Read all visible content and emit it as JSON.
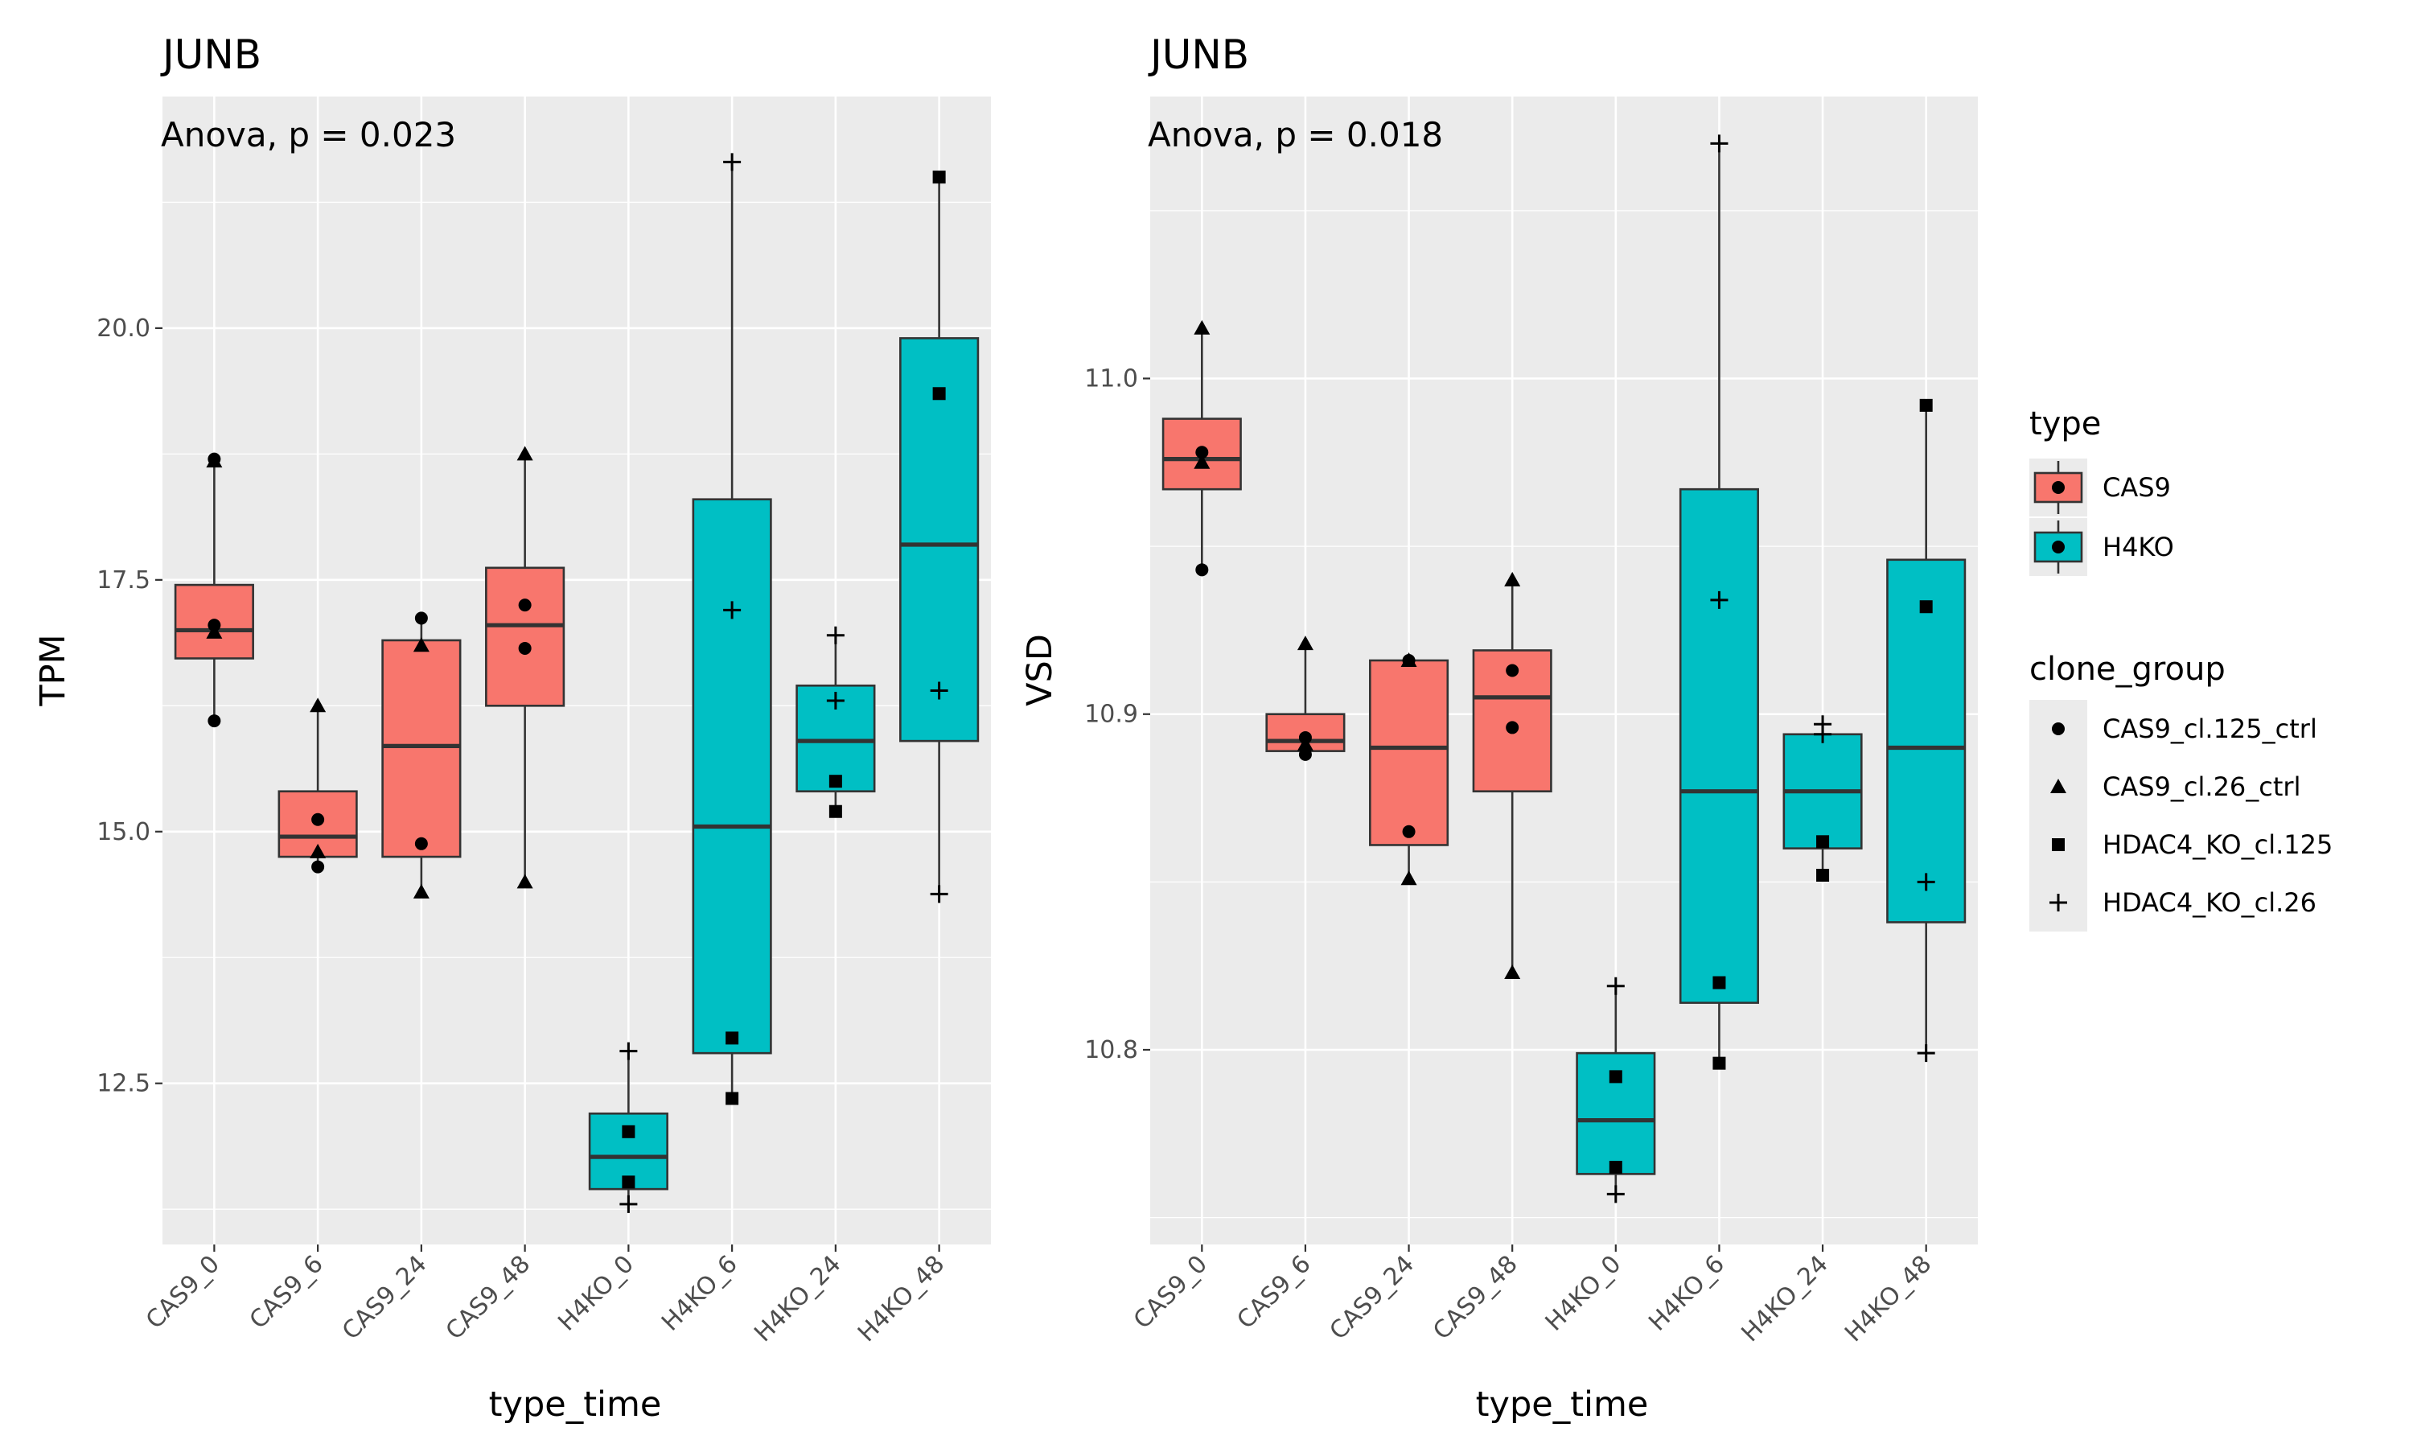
{
  "chart_data": [
    {
      "type": "box",
      "title": "JUNB",
      "annotation": "Anova, p = 0.023",
      "xlabel": "type_time",
      "ylabel": "TPM",
      "ylim": [
        10.9,
        22.3
      ],
      "yticks": [
        12.5,
        15.0,
        17.5,
        20.0
      ],
      "ytick_labels": [
        "12.5",
        "15.0",
        "17.5",
        "20.0"
      ],
      "categories": [
        "CAS9_0",
        "CAS9_6",
        "CAS9_24",
        "CAS9_48",
        "H4KO_0",
        "H4KO_6",
        "H4KO_24",
        "H4KO_48"
      ],
      "box_type": [
        "CAS9",
        "CAS9",
        "CAS9",
        "CAS9",
        "H4KO",
        "H4KO",
        "H4KO",
        "H4KO"
      ],
      "boxes": [
        {
          "min": 16.1,
          "q1": 16.72,
          "median": 17.0,
          "q3": 17.45,
          "max": 18.7
        },
        {
          "min": 14.65,
          "q1": 14.75,
          "median": 14.95,
          "q3": 15.4,
          "max": 16.25
        },
        {
          "min": 14.4,
          "q1": 14.75,
          "median": 15.85,
          "q3": 16.9,
          "max": 17.15
        },
        {
          "min": 14.5,
          "q1": 16.25,
          "median": 17.05,
          "q3": 17.62,
          "max": 18.75
        },
        {
          "min": 11.3,
          "q1": 11.45,
          "median": 11.77,
          "q3": 12.2,
          "max": 12.82
        },
        {
          "min": 12.35,
          "q1": 12.8,
          "median": 15.05,
          "q3": 18.3,
          "max": 21.65
        },
        {
          "min": 15.2,
          "q1": 15.4,
          "median": 15.9,
          "q3": 16.45,
          "max": 16.95
        },
        {
          "min": 14.38,
          "q1": 15.9,
          "median": 17.85,
          "q3": 19.9,
          "max": 21.5
        }
      ],
      "points": [
        {
          "x": "CAS9_0",
          "y": 18.7,
          "group": "CAS9_cl.125_ctrl"
        },
        {
          "x": "CAS9_0",
          "y": 16.1,
          "group": "CAS9_cl.125_ctrl"
        },
        {
          "x": "CAS9_0",
          "y": 17.05,
          "group": "CAS9_cl.125_ctrl"
        },
        {
          "x": "CAS9_0",
          "y": 16.98,
          "group": "CAS9_cl.26_ctrl"
        },
        {
          "x": "CAS9_0",
          "y": 18.68,
          "group": "CAS9_cl.26_ctrl"
        },
        {
          "x": "CAS9_6",
          "y": 15.12,
          "group": "CAS9_cl.125_ctrl"
        },
        {
          "x": "CAS9_6",
          "y": 14.65,
          "group": "CAS9_cl.125_ctrl"
        },
        {
          "x": "CAS9_6",
          "y": 16.25,
          "group": "CAS9_cl.26_ctrl"
        },
        {
          "x": "CAS9_6",
          "y": 14.8,
          "group": "CAS9_cl.26_ctrl"
        },
        {
          "x": "CAS9_24",
          "y": 17.12,
          "group": "CAS9_cl.125_ctrl"
        },
        {
          "x": "CAS9_24",
          "y": 14.88,
          "group": "CAS9_cl.125_ctrl"
        },
        {
          "x": "CAS9_24",
          "y": 16.85,
          "group": "CAS9_cl.26_ctrl"
        },
        {
          "x": "CAS9_24",
          "y": 14.4,
          "group": "CAS9_cl.26_ctrl"
        },
        {
          "x": "CAS9_48",
          "y": 17.25,
          "group": "CAS9_cl.125_ctrl"
        },
        {
          "x": "CAS9_48",
          "y": 16.82,
          "group": "CAS9_cl.125_ctrl"
        },
        {
          "x": "CAS9_48",
          "y": 18.75,
          "group": "CAS9_cl.26_ctrl"
        },
        {
          "x": "CAS9_48",
          "y": 14.5,
          "group": "CAS9_cl.26_ctrl"
        },
        {
          "x": "H4KO_0",
          "y": 12.02,
          "group": "HDAC4_KO_cl.125"
        },
        {
          "x": "H4KO_0",
          "y": 11.52,
          "group": "HDAC4_KO_cl.125"
        },
        {
          "x": "H4KO_0",
          "y": 12.82,
          "group": "HDAC4_KO_cl.26"
        },
        {
          "x": "H4KO_0",
          "y": 11.3,
          "group": "HDAC4_KO_cl.26"
        },
        {
          "x": "H4KO_6",
          "y": 12.95,
          "group": "HDAC4_KO_cl.125"
        },
        {
          "x": "H4KO_6",
          "y": 12.35,
          "group": "HDAC4_KO_cl.125"
        },
        {
          "x": "H4KO_6",
          "y": 21.65,
          "group": "HDAC4_KO_cl.26"
        },
        {
          "x": "H4KO_6",
          "y": 17.2,
          "group": "HDAC4_KO_cl.26"
        },
        {
          "x": "H4KO_24",
          "y": 15.5,
          "group": "HDAC4_KO_cl.125"
        },
        {
          "x": "H4KO_24",
          "y": 15.2,
          "group": "HDAC4_KO_cl.125"
        },
        {
          "x": "H4KO_24",
          "y": 16.95,
          "group": "HDAC4_KO_cl.26"
        },
        {
          "x": "H4KO_24",
          "y": 16.3,
          "group": "HDAC4_KO_cl.26"
        },
        {
          "x": "H4KO_48",
          "y": 21.5,
          "group": "HDAC4_KO_cl.125"
        },
        {
          "x": "H4KO_48",
          "y": 19.35,
          "group": "HDAC4_KO_cl.125"
        },
        {
          "x": "H4KO_48",
          "y": 16.4,
          "group": "HDAC4_KO_cl.26"
        },
        {
          "x": "H4KO_48",
          "y": 14.38,
          "group": "HDAC4_KO_cl.26"
        }
      ]
    },
    {
      "type": "box",
      "title": "JUNB",
      "annotation": "Anova, p = 0.018",
      "xlabel": "type_time",
      "ylabel": "VSD",
      "ylim": [
        10.742,
        11.084
      ],
      "yticks": [
        10.8,
        10.9,
        11.0
      ],
      "ytick_labels": [
        "10.8",
        "10.9",
        "11.0"
      ],
      "categories": [
        "CAS9_0",
        "CAS9_6",
        "CAS9_24",
        "CAS9_48",
        "H4KO_0",
        "H4KO_6",
        "H4KO_24",
        "H4KO_48"
      ],
      "box_type": [
        "CAS9",
        "CAS9",
        "CAS9",
        "CAS9",
        "H4KO",
        "H4KO",
        "H4KO",
        "H4KO"
      ],
      "boxes": [
        {
          "min": 10.943,
          "q1": 10.967,
          "median": 10.976,
          "q3": 10.988,
          "max": 11.015
        },
        {
          "min": 10.888,
          "q1": 10.889,
          "median": 10.892,
          "q3": 10.9,
          "max": 10.921
        },
        {
          "min": 10.851,
          "q1": 10.861,
          "median": 10.89,
          "q3": 10.916,
          "max": 10.916
        },
        {
          "min": 10.823,
          "q1": 10.877,
          "median": 10.905,
          "q3": 10.919,
          "max": 10.94
        },
        {
          "min": 10.757,
          "q1": 10.763,
          "median": 10.779,
          "q3": 10.799,
          "max": 10.819
        },
        {
          "min": 10.796,
          "q1": 10.814,
          "median": 10.877,
          "q3": 10.967,
          "max": 11.07
        },
        {
          "min": 10.852,
          "q1": 10.86,
          "median": 10.877,
          "q3": 10.894,
          "max": 10.897
        },
        {
          "min": 10.799,
          "q1": 10.838,
          "median": 10.89,
          "q3": 10.946,
          "max": 10.992
        }
      ],
      "points": [
        {
          "x": "CAS9_0",
          "y": 10.978,
          "group": "CAS9_cl.125_ctrl"
        },
        {
          "x": "CAS9_0",
          "y": 10.943,
          "group": "CAS9_cl.125_ctrl"
        },
        {
          "x": "CAS9_0",
          "y": 11.015,
          "group": "CAS9_cl.26_ctrl"
        },
        {
          "x": "CAS9_0",
          "y": 10.975,
          "group": "CAS9_cl.26_ctrl"
        },
        {
          "x": "CAS9_6",
          "y": 10.893,
          "group": "CAS9_cl.125_ctrl"
        },
        {
          "x": "CAS9_6",
          "y": 10.888,
          "group": "CAS9_cl.125_ctrl"
        },
        {
          "x": "CAS9_6",
          "y": 10.921,
          "group": "CAS9_cl.26_ctrl"
        },
        {
          "x": "CAS9_6",
          "y": 10.891,
          "group": "CAS9_cl.26_ctrl"
        },
        {
          "x": "CAS9_24",
          "y": 10.865,
          "group": "CAS9_cl.125_ctrl"
        },
        {
          "x": "CAS9_24",
          "y": 10.916,
          "group": "CAS9_cl.125_ctrl"
        },
        {
          "x": "CAS9_24",
          "y": 10.916,
          "group": "CAS9_cl.26_ctrl"
        },
        {
          "x": "CAS9_24",
          "y": 10.851,
          "group": "CAS9_cl.26_ctrl"
        },
        {
          "x": "CAS9_48",
          "y": 10.913,
          "group": "CAS9_cl.125_ctrl"
        },
        {
          "x": "CAS9_48",
          "y": 10.896,
          "group": "CAS9_cl.125_ctrl"
        },
        {
          "x": "CAS9_48",
          "y": 10.94,
          "group": "CAS9_cl.26_ctrl"
        },
        {
          "x": "CAS9_48",
          "y": 10.823,
          "group": "CAS9_cl.26_ctrl"
        },
        {
          "x": "H4KO_0",
          "y": 10.792,
          "group": "HDAC4_KO_cl.125"
        },
        {
          "x": "H4KO_0",
          "y": 10.765,
          "group": "HDAC4_KO_cl.125"
        },
        {
          "x": "H4KO_0",
          "y": 10.819,
          "group": "HDAC4_KO_cl.26"
        },
        {
          "x": "H4KO_0",
          "y": 10.757,
          "group": "HDAC4_KO_cl.26"
        },
        {
          "x": "H4KO_6",
          "y": 10.82,
          "group": "HDAC4_KO_cl.125"
        },
        {
          "x": "H4KO_6",
          "y": 10.796,
          "group": "HDAC4_KO_cl.125"
        },
        {
          "x": "H4KO_6",
          "y": 11.07,
          "group": "HDAC4_KO_cl.26"
        },
        {
          "x": "H4KO_6",
          "y": 10.934,
          "group": "HDAC4_KO_cl.26"
        },
        {
          "x": "H4KO_24",
          "y": 10.862,
          "group": "HDAC4_KO_cl.125"
        },
        {
          "x": "H4KO_24",
          "y": 10.852,
          "group": "HDAC4_KO_cl.125"
        },
        {
          "x": "H4KO_24",
          "y": 10.897,
          "group": "HDAC4_KO_cl.26"
        },
        {
          "x": "H4KO_24",
          "y": 10.894,
          "group": "HDAC4_KO_cl.26"
        },
        {
          "x": "H4KO_48",
          "y": 10.992,
          "group": "HDAC4_KO_cl.125"
        },
        {
          "x": "H4KO_48",
          "y": 10.932,
          "group": "HDAC4_KO_cl.125"
        },
        {
          "x": "H4KO_48",
          "y": 10.85,
          "group": "HDAC4_KO_cl.26"
        },
        {
          "x": "H4KO_48",
          "y": 10.799,
          "group": "HDAC4_KO_cl.26"
        }
      ]
    }
  ],
  "legend": {
    "type": {
      "title": "type",
      "items": [
        {
          "label": "CAS9",
          "color": "#F8766D"
        },
        {
          "label": "H4KO",
          "color": "#00BFC4"
        }
      ]
    },
    "clone_group": {
      "title": "clone_group",
      "items": [
        {
          "label": "CAS9_cl.125_ctrl",
          "shape": "circle"
        },
        {
          "label": "CAS9_cl.26_ctrl",
          "shape": "triangle"
        },
        {
          "label": "HDAC4_KO_cl.125",
          "shape": "square"
        },
        {
          "label": "HDAC4_KO_cl.26",
          "shape": "plus"
        }
      ]
    }
  },
  "colors": {
    "CAS9": "#F8766D",
    "H4KO": "#00BFC4",
    "panel_background": "#EBEBEB",
    "grid": "#FFFFFF"
  }
}
